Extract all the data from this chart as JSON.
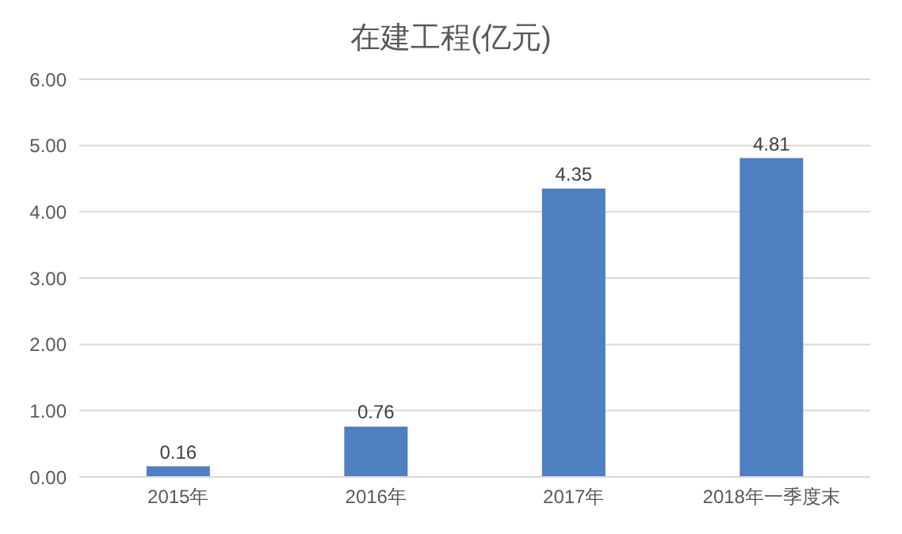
{
  "chart_data": {
    "type": "bar",
    "title": "在建工程(亿元)",
    "categories": [
      "2015年",
      "2016年",
      "2017年",
      "2018年一季度末"
    ],
    "values": [
      0.16,
      0.76,
      4.35,
      4.81
    ],
    "color": "#4e7fc0",
    "ylim": [
      0,
      6
    ],
    "yticks": [
      {
        "value": 0,
        "label": "0.00"
      },
      {
        "value": 1,
        "label": "1.00"
      },
      {
        "value": 2,
        "label": "2.00"
      },
      {
        "value": 3,
        "label": "3.00"
      },
      {
        "value": 4,
        "label": "4.00"
      },
      {
        "value": 5,
        "label": "5.00"
      },
      {
        "value": 6,
        "label": "6.00"
      }
    ],
    "grid": "y",
    "data_labels": true
  }
}
